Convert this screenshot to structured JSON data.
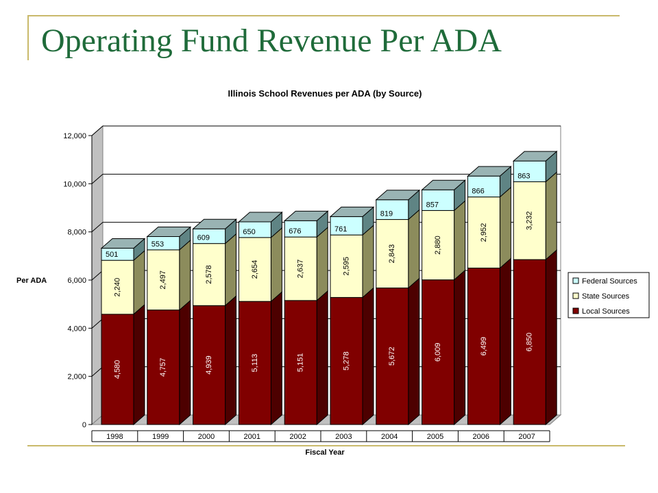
{
  "slide": {
    "title": "Operating Fund Revenue Per ADA"
  },
  "colors": {
    "frame": "#c9b96a",
    "title": "#1f6b3a",
    "local": "#800000",
    "state": "#ffffcc",
    "federal": "#ccffff",
    "top": "#99b3b3"
  },
  "chart_data": {
    "type": "bar",
    "stacked": true,
    "three_d": true,
    "title": "Illinois School Revenues per ADA (by Source)",
    "xlabel": "Fiscal Year",
    "ylabel": "Per ADA",
    "ylim": [
      0,
      12000
    ],
    "yticks": [
      0,
      2000,
      4000,
      6000,
      8000,
      10000,
      12000
    ],
    "ytick_labels": [
      "0",
      "2,000",
      "4,000",
      "6,000",
      "8,000",
      "10,000",
      "12,000"
    ],
    "grid": true,
    "legend_position": "right",
    "categories": [
      "1998",
      "1999",
      "2000",
      "2001",
      "2002",
      "2003",
      "2004",
      "2005",
      "2006",
      "2007"
    ],
    "series": [
      {
        "name": "Local Sources",
        "values": [
          4580,
          4757,
          4939,
          5113,
          5151,
          5278,
          5672,
          6009,
          6499,
          6850
        ],
        "labels": [
          "4,580",
          "4,757",
          "4,939",
          "5,113",
          "5,151",
          "5,278",
          "5,672",
          "6,009",
          "6,499",
          "6,850"
        ]
      },
      {
        "name": "State Sources",
        "values": [
          2240,
          2497,
          2578,
          2654,
          2637,
          2595,
          2843,
          2880,
          2952,
          3232
        ],
        "labels": [
          "2,240",
          "2,497",
          "2,578",
          "2,654",
          "2,637",
          "2,595",
          "2,843",
          "2,880",
          "2,952",
          "3,232"
        ]
      },
      {
        "name": "Federal Sources",
        "values": [
          501,
          553,
          609,
          650,
          676,
          761,
          819,
          857,
          866,
          863
        ],
        "labels": [
          "501",
          "553",
          "609",
          "650",
          "676",
          "761",
          "819",
          "857",
          "866",
          "863"
        ]
      }
    ],
    "legend_order": [
      "Federal Sources",
      "State Sources",
      "Local Sources"
    ]
  }
}
